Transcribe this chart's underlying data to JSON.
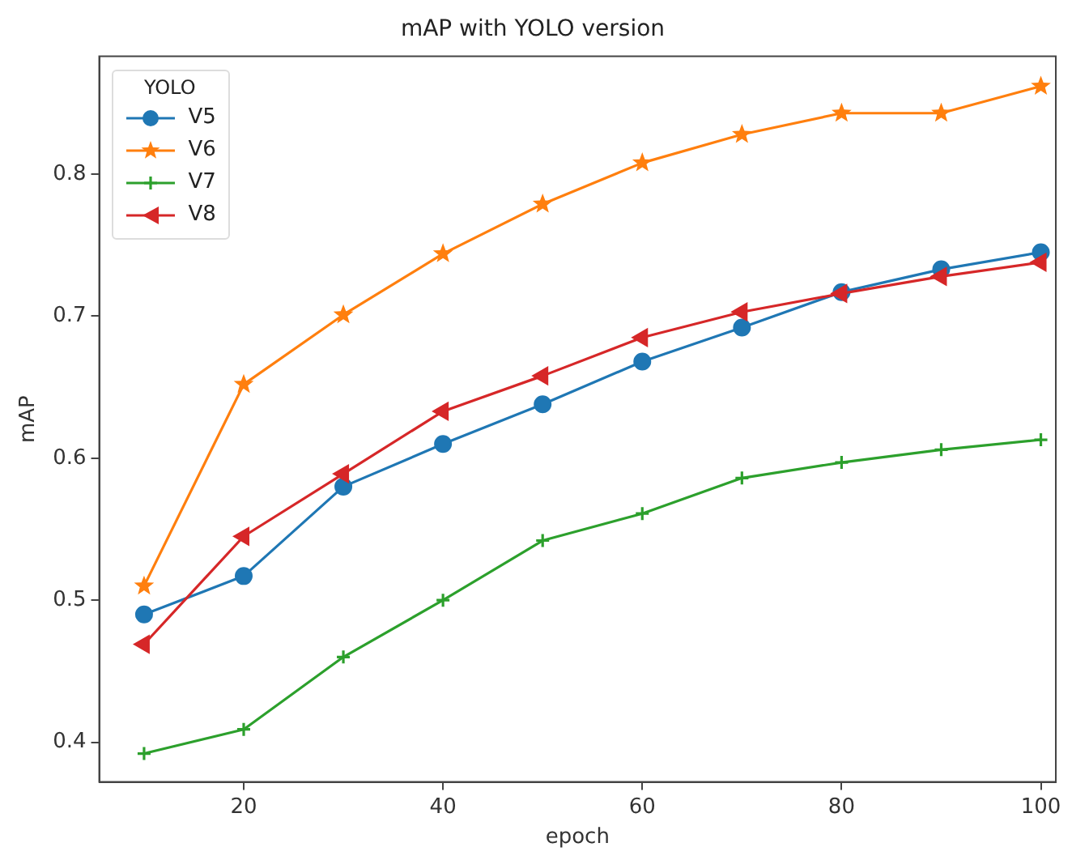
{
  "chart_data": {
    "type": "line",
    "title": "mAP with YOLO version",
    "xlabel": "epoch",
    "ylabel": "mAP",
    "legend_title": "YOLO",
    "legend": "top left",
    "grid": false,
    "x": [
      10,
      20,
      30,
      40,
      50,
      60,
      70,
      80,
      90,
      100
    ],
    "xlim": [
      5.5,
      101.5
    ],
    "xticks": [
      20,
      40,
      60,
      80,
      100
    ],
    "ylim": [
      0.372,
      0.883
    ],
    "yticks": [
      0.4,
      0.5,
      0.6,
      0.7,
      0.8
    ],
    "series": [
      {
        "name": "V5",
        "color": "#1f77b4",
        "marker": "circle",
        "values": [
          0.49,
          0.517,
          0.58,
          0.61,
          0.638,
          0.668,
          0.692,
          0.717,
          0.733,
          0.745
        ]
      },
      {
        "name": "V6",
        "color": "#ff7f0e",
        "marker": "star",
        "values": [
          0.51,
          0.652,
          0.701,
          0.744,
          0.779,
          0.808,
          0.828,
          0.843,
          0.843,
          0.862
        ]
      },
      {
        "name": "V7",
        "color": "#2ca02c",
        "marker": "cross",
        "values": [
          0.392,
          0.409,
          0.46,
          0.5,
          0.542,
          0.561,
          0.586,
          0.597,
          0.606,
          0.613
        ]
      },
      {
        "name": "V8",
        "color": "#d62728",
        "marker": "triangle",
        "values": [
          0.469,
          0.545,
          0.589,
          0.633,
          0.658,
          0.685,
          0.703,
          0.716,
          0.728,
          0.738
        ]
      }
    ]
  }
}
